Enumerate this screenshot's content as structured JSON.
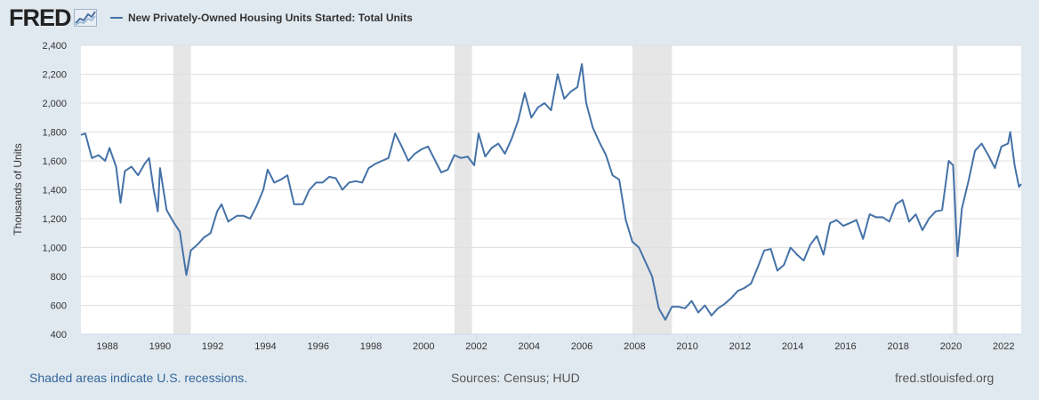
{
  "header": {
    "logo_text": "FRED",
    "logo_icon": "fred-line-chart-icon"
  },
  "footer": {
    "recession_note": "Shaded areas indicate U.S. recessions.",
    "sources": "Sources: Census; HUD",
    "site": "fred.stlouisfed.org"
  },
  "colors": {
    "background": "#e1e9f0",
    "plot_background": "#ffffff",
    "line": "#4572a7",
    "recession_shade": "#e6e6e6",
    "grid": "#e0e0e0"
  },
  "chart_data": {
    "type": "line",
    "title": "",
    "xlabel": "",
    "ylabel": "Thousands of Units",
    "xlim": [
      "1987-01",
      "2022-09"
    ],
    "ylim": [
      400,
      2400
    ],
    "y_ticks": [
      400,
      600,
      800,
      1000,
      1200,
      1400,
      1600,
      1800,
      2000,
      2200,
      2400
    ],
    "y_tick_labels": [
      "400",
      "600",
      "800",
      "1,000",
      "1,200",
      "1,400",
      "1,600",
      "1,800",
      "2,000",
      "2,200",
      "2,400"
    ],
    "x_ticks": [
      "1988",
      "1990",
      "1992",
      "1994",
      "1996",
      "1998",
      "2000",
      "2002",
      "2004",
      "2006",
      "2008",
      "2010",
      "2012",
      "2014",
      "2016",
      "2018",
      "2020",
      "2022"
    ],
    "grid": true,
    "legend": "top-left",
    "recessions": [
      [
        "1990-07",
        "1991-03"
      ],
      [
        "2001-03",
        "2001-11"
      ],
      [
        "2007-12",
        "2009-06"
      ],
      [
        "2020-02",
        "2020-04"
      ]
    ],
    "series": [
      {
        "name": "New Privately-Owned Housing Units Started: Total Units",
        "points": [
          [
            "1987-01",
            1780
          ],
          [
            "1987-03",
            1790
          ],
          [
            "1987-06",
            1620
          ],
          [
            "1987-09",
            1640
          ],
          [
            "1987-12",
            1600
          ],
          [
            "1988-02",
            1690
          ],
          [
            "1988-05",
            1560
          ],
          [
            "1988-07",
            1310
          ],
          [
            "1988-09",
            1530
          ],
          [
            "1988-12",
            1560
          ],
          [
            "1989-03",
            1500
          ],
          [
            "1989-06",
            1580
          ],
          [
            "1989-08",
            1620
          ],
          [
            "1989-10",
            1410
          ],
          [
            "1989-12",
            1250
          ],
          [
            "1990-01",
            1550
          ],
          [
            "1990-04",
            1260
          ],
          [
            "1990-07",
            1180
          ],
          [
            "1990-10",
            1110
          ],
          [
            "1991-01",
            810
          ],
          [
            "1991-03",
            980
          ],
          [
            "1991-06",
            1020
          ],
          [
            "1991-09",
            1070
          ],
          [
            "1991-12",
            1100
          ],
          [
            "1992-03",
            1250
          ],
          [
            "1992-05",
            1300
          ],
          [
            "1992-08",
            1180
          ],
          [
            "1992-12",
            1220
          ],
          [
            "1993-03",
            1220
          ],
          [
            "1993-06",
            1200
          ],
          [
            "1993-09",
            1290
          ],
          [
            "1993-12",
            1400
          ],
          [
            "1994-02",
            1540
          ],
          [
            "1994-05",
            1450
          ],
          [
            "1994-08",
            1470
          ],
          [
            "1994-11",
            1500
          ],
          [
            "1995-02",
            1300
          ],
          [
            "1995-06",
            1300
          ],
          [
            "1995-09",
            1400
          ],
          [
            "1995-12",
            1450
          ],
          [
            "1996-03",
            1450
          ],
          [
            "1996-06",
            1490
          ],
          [
            "1996-09",
            1480
          ],
          [
            "1996-12",
            1400
          ],
          [
            "1997-03",
            1450
          ],
          [
            "1997-06",
            1460
          ],
          [
            "1997-09",
            1450
          ],
          [
            "1997-12",
            1550
          ],
          [
            "1998-03",
            1580
          ],
          [
            "1998-06",
            1600
          ],
          [
            "1998-09",
            1620
          ],
          [
            "1998-12",
            1790
          ],
          [
            "1999-03",
            1700
          ],
          [
            "1999-06",
            1600
          ],
          [
            "1999-09",
            1650
          ],
          [
            "1999-12",
            1680
          ],
          [
            "2000-03",
            1700
          ],
          [
            "2000-06",
            1610
          ],
          [
            "2000-09",
            1520
          ],
          [
            "2000-12",
            1540
          ],
          [
            "2001-03",
            1640
          ],
          [
            "2001-06",
            1620
          ],
          [
            "2001-09",
            1630
          ],
          [
            "2001-12",
            1570
          ],
          [
            "2002-02",
            1790
          ],
          [
            "2002-05",
            1630
          ],
          [
            "2002-08",
            1690
          ],
          [
            "2002-11",
            1720
          ],
          [
            "2003-02",
            1650
          ],
          [
            "2003-05",
            1750
          ],
          [
            "2003-08",
            1880
          ],
          [
            "2003-11",
            2070
          ],
          [
            "2004-02",
            1900
          ],
          [
            "2004-05",
            1970
          ],
          [
            "2004-08",
            2000
          ],
          [
            "2004-11",
            1950
          ],
          [
            "2005-02",
            2200
          ],
          [
            "2005-05",
            2030
          ],
          [
            "2005-08",
            2080
          ],
          [
            "2005-11",
            2110
          ],
          [
            "2006-01",
            2270
          ],
          [
            "2006-03",
            2000
          ],
          [
            "2006-06",
            1830
          ],
          [
            "2006-09",
            1730
          ],
          [
            "2006-12",
            1640
          ],
          [
            "2007-03",
            1500
          ],
          [
            "2007-06",
            1470
          ],
          [
            "2007-09",
            1190
          ],
          [
            "2007-12",
            1040
          ],
          [
            "2008-03",
            1000
          ],
          [
            "2008-06",
            900
          ],
          [
            "2008-09",
            800
          ],
          [
            "2008-12",
            580
          ],
          [
            "2009-03",
            500
          ],
          [
            "2009-06",
            590
          ],
          [
            "2009-09",
            590
          ],
          [
            "2009-12",
            580
          ],
          [
            "2010-03",
            630
          ],
          [
            "2010-06",
            550
          ],
          [
            "2010-09",
            600
          ],
          [
            "2010-12",
            530
          ],
          [
            "2011-03",
            580
          ],
          [
            "2011-06",
            610
          ],
          [
            "2011-09",
            650
          ],
          [
            "2011-12",
            700
          ],
          [
            "2012-03",
            720
          ],
          [
            "2012-06",
            750
          ],
          [
            "2012-09",
            860
          ],
          [
            "2012-12",
            980
          ],
          [
            "2013-03",
            990
          ],
          [
            "2013-06",
            840
          ],
          [
            "2013-09",
            880
          ],
          [
            "2013-12",
            1000
          ],
          [
            "2014-03",
            950
          ],
          [
            "2014-06",
            910
          ],
          [
            "2014-09",
            1020
          ],
          [
            "2014-12",
            1080
          ],
          [
            "2015-03",
            950
          ],
          [
            "2015-06",
            1170
          ],
          [
            "2015-09",
            1190
          ],
          [
            "2015-12",
            1150
          ],
          [
            "2016-03",
            1170
          ],
          [
            "2016-06",
            1190
          ],
          [
            "2016-09",
            1060
          ],
          [
            "2016-12",
            1230
          ],
          [
            "2017-03",
            1210
          ],
          [
            "2017-06",
            1210
          ],
          [
            "2017-09",
            1180
          ],
          [
            "2017-12",
            1300
          ],
          [
            "2018-03",
            1330
          ],
          [
            "2018-06",
            1180
          ],
          [
            "2018-09",
            1230
          ],
          [
            "2018-12",
            1120
          ],
          [
            "2019-03",
            1200
          ],
          [
            "2019-06",
            1250
          ],
          [
            "2019-09",
            1260
          ],
          [
            "2019-12",
            1600
          ],
          [
            "2020-02",
            1570
          ],
          [
            "2020-04",
            940
          ],
          [
            "2020-06",
            1270
          ],
          [
            "2020-09",
            1460
          ],
          [
            "2020-12",
            1670
          ],
          [
            "2021-03",
            1720
          ],
          [
            "2021-06",
            1640
          ],
          [
            "2021-09",
            1550
          ],
          [
            "2021-12",
            1700
          ],
          [
            "2022-03",
            1720
          ],
          [
            "2022-04",
            1800
          ],
          [
            "2022-06",
            1570
          ],
          [
            "2022-08",
            1420
          ],
          [
            "2022-09",
            1440
          ]
        ]
      }
    ]
  }
}
